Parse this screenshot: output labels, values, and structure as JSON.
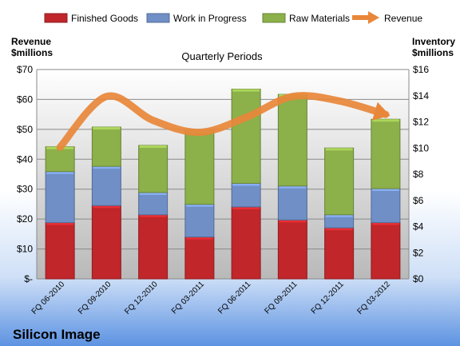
{
  "company": "Silicon Image",
  "chart_data": {
    "type": "bar",
    "stacked": true,
    "title": "Quarterly Periods",
    "left_axis_label": [
      "Revenue",
      "$millions"
    ],
    "right_axis_label": [
      "Inventory",
      "$millions"
    ],
    "categories": [
      "FQ 06-2010",
      "FQ 09-2010",
      "FQ 12-2010",
      "FQ 03-2011",
      "FQ 06-2011",
      "FQ 09-2011",
      "FQ 12-2011",
      "FQ 03-2012"
    ],
    "series": [
      {
        "name": "Finished Goods",
        "axis": "right",
        "color": "#c0262a",
        "values": [
          4.3,
          5.6,
          4.9,
          3.2,
          5.5,
          4.5,
          3.9,
          4.3
        ]
      },
      {
        "name": "Work in Progress",
        "axis": "right",
        "color": "#6f8fc6",
        "values": [
          3.9,
          3.0,
          1.7,
          2.5,
          1.8,
          2.6,
          1.0,
          2.6
        ]
      },
      {
        "name": "Raw Materials",
        "axis": "right",
        "color": "#8cb04a",
        "values": [
          1.9,
          3.0,
          3.6,
          5.6,
          7.2,
          7.0,
          5.1,
          5.3
        ]
      }
    ],
    "line_series": {
      "name": "Revenue",
      "axis": "left",
      "color": "#e8873a",
      "values": [
        44,
        61,
        53,
        49,
        54,
        61,
        59.5,
        55
      ]
    },
    "left_axis": {
      "min": 0,
      "max": 70,
      "step": 10,
      "ticks": [
        "$-",
        "$10",
        "$20",
        "$30",
        "$40",
        "$50",
        "$60",
        "$70"
      ]
    },
    "right_axis": {
      "min": 0,
      "max": 16,
      "step": 2,
      "ticks": [
        "$0",
        "$2",
        "$4",
        "$6",
        "$8",
        "$10",
        "$12",
        "$14",
        "$16"
      ]
    },
    "legend_position": "top",
    "grid": true
  }
}
